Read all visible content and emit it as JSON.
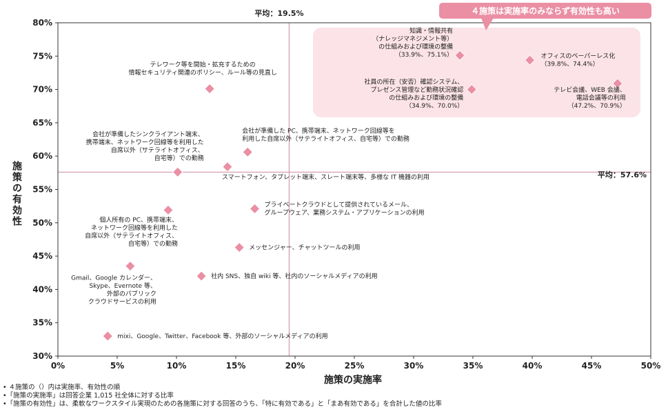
{
  "chart_data": {
    "type": "scatter",
    "xlabel": "施策の実施率",
    "ylabel": "施策の有効性",
    "xlim": [
      0,
      50
    ],
    "ylim": [
      30,
      80
    ],
    "xticks": [
      0,
      5,
      10,
      15,
      20,
      25,
      30,
      35,
      40,
      45,
      50
    ],
    "yticks": [
      30,
      35,
      40,
      45,
      50,
      55,
      60,
      65,
      70,
      75,
      80
    ],
    "tick_suffix": "%",
    "marker_color": "#ea8fa4",
    "avg_x": {
      "value": 19.5,
      "label": "平均：19.5%"
    },
    "avg_y": {
      "value": 57.6,
      "label": "平均：57.6%"
    },
    "highlight_callout": "４施策は実施率のみならず有効性も高い",
    "points": [
      {
        "x": 33.9,
        "y": 75.1,
        "label": [
          "知識・情報共有",
          "（ナレッジマネジメント等）",
          "の仕組みおよび環境の整備",
          "（33.9%、75.1%）"
        ]
      },
      {
        "x": 39.8,
        "y": 74.4,
        "label": [
          "オフィスのペーパーレス化",
          "（39.8%、74.4%）"
        ]
      },
      {
        "x": 34.9,
        "y": 70.0,
        "label": [
          "社員の所在（安否）確認システム、",
          "プレゼンス管理など勤務状況確認",
          "の仕組みおよび環境の整備",
          "（34.9%、70.0%）"
        ]
      },
      {
        "x": 47.2,
        "y": 70.9,
        "label": [
          "テレビ会議、WEB 会議、",
          "電話会議等の利用",
          "（47.2%、70.9%）"
        ]
      },
      {
        "x": 12.8,
        "y": 70.1,
        "label": [
          "テレワーク等を開始・拡充するための",
          "情報セキュリティ関連のポリシー、ルール等の見直し"
        ]
      },
      {
        "x": 16.0,
        "y": 60.6,
        "label": [
          "会社が準備した PC、携帯端末、ネットワーク回線等を",
          "利用した自席以外（サテライトオフィス、自宅等）での勤務"
        ]
      },
      {
        "x": 10.1,
        "y": 57.6,
        "label": [
          "会社が準備したシンクライアント端末、",
          "携帯端末、ネットワーク回線等を利用した",
          "自席以外（サテライトオフィス、",
          "自宅等）での勤務"
        ]
      },
      {
        "x": 14.3,
        "y": 58.4,
        "label": [
          "スマートフォン、タブレット端末、スレート端末等、多様な IT 機器の利用"
        ]
      },
      {
        "x": 16.6,
        "y": 52.1,
        "label": [
          "プライベートクラウドとして提供されているメール、",
          "グループウェア、業務システム・アプリケーションの利用"
        ]
      },
      {
        "x": 9.3,
        "y": 51.9,
        "label": [
          "個人所有の PC、携帯端末、",
          "ネットワーク回線等を利用した",
          "自席以外（サテライトオフィス、",
          "自宅等）での勤務"
        ]
      },
      {
        "x": 15.3,
        "y": 46.3,
        "label": [
          "メッセンジャー、チャットツールの利用"
        ]
      },
      {
        "x": 6.1,
        "y": 43.5,
        "label": [
          "Gmail、Google カレンダー、",
          "Skype、Evernote 等、",
          "外部のパブリック",
          "クラウドサービスの利用"
        ]
      },
      {
        "x": 12.1,
        "y": 42.0,
        "label": [
          "社内 SNS、独自 wiki 等、社内のソーシャルメディアの利用"
        ]
      },
      {
        "x": 4.2,
        "y": 33.0,
        "label": [
          "mixi、Google、Twitter、Facebook 等、外部のソーシャルメディアの利用"
        ]
      }
    ]
  },
  "notes": [
    "• ４施策の（）内は実施率、有効性の順",
    "•「施策の実施率」は回答企業 1,015 社全体に対する比率",
    "•「施策の有効性」は、柔軟なワークスタイル実現のための各施策に対する回答のうち、「特に有効である」と「まあ有効である」を合計した値の比率"
  ]
}
